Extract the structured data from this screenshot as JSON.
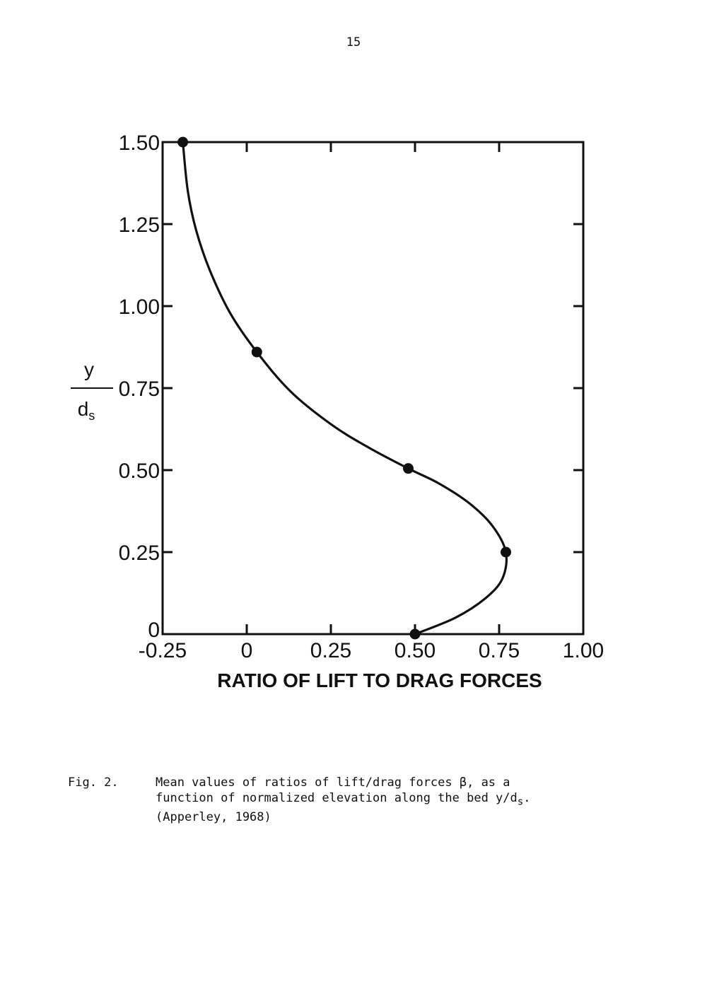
{
  "page": {
    "number": "15"
  },
  "caption": {
    "label": "Fig. 2.",
    "line1": "Mean values of ratios of lift/drag forces β, as a",
    "line2": "function of normalized elevation along the bed y/d",
    "line2_subscript": "s",
    "line2_end": ".",
    "line3": "(Apperley, 1968)"
  },
  "chart_data": {
    "type": "line",
    "xlabel": "RATIO OF LIFT TO DRAG FORCES",
    "ylabel_numerator": "y",
    "ylabel_denominator": "d",
    "ylabel_subscript": "s",
    "xlim": [
      -0.25,
      1.0
    ],
    "ylim": [
      0,
      1.5
    ],
    "xticks": [
      "-0.25",
      "0",
      "0.25",
      "0.50",
      "0.75",
      "1.00"
    ],
    "xtick_values": [
      -0.25,
      0,
      0.25,
      0.5,
      0.75,
      1.0
    ],
    "yticks": [
      "0",
      "0.25",
      "0.50",
      "0.75",
      "1.00",
      "1.25",
      "1.50"
    ],
    "ytick_values": [
      0,
      0.25,
      0.5,
      0.75,
      1.0,
      1.25,
      1.5
    ],
    "grid": false,
    "series": [
      {
        "points": [
          {
            "x": 0.5,
            "y": 0.0
          },
          {
            "x": 0.77,
            "y": 0.25
          },
          {
            "x": 0.48,
            "y": 0.505
          },
          {
            "x": 0.03,
            "y": 0.86
          },
          {
            "x": -0.19,
            "y": 1.5
          }
        ],
        "curve": [
          [
            0.5,
            0.0
          ],
          [
            0.62,
            0.05
          ],
          [
            0.71,
            0.11
          ],
          [
            0.76,
            0.17
          ],
          [
            0.77,
            0.25
          ],
          [
            0.73,
            0.33
          ],
          [
            0.66,
            0.4
          ],
          [
            0.57,
            0.46
          ],
          [
            0.48,
            0.505
          ],
          [
            0.36,
            0.57
          ],
          [
            0.25,
            0.64
          ],
          [
            0.13,
            0.74
          ],
          [
            0.03,
            0.86
          ],
          [
            -0.05,
            0.98
          ],
          [
            -0.11,
            1.11
          ],
          [
            -0.15,
            1.23
          ],
          [
            -0.175,
            1.35
          ],
          [
            -0.19,
            1.5
          ]
        ]
      }
    ]
  }
}
